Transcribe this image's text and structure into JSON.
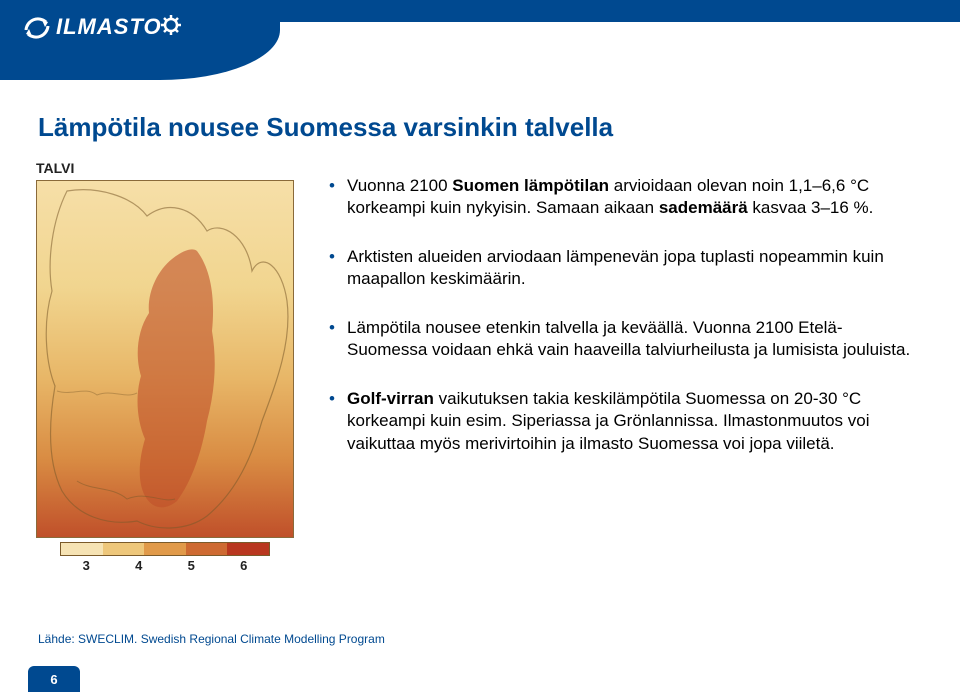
{
  "brand": {
    "logo_text": "ILMASTO",
    "banner_color": "#004990"
  },
  "title": "Lämpötila nousee Suomessa varsinkin talvella",
  "map": {
    "label": "TALVI",
    "legend_values": [
      "3",
      "4",
      "5",
      "6"
    ],
    "legend_colors": [
      "#f6e3b4",
      "#eec77b",
      "#e19a4a",
      "#ce6a32",
      "#b9371f"
    ],
    "gradient_top": "#f6dfa8",
    "gradient_bottom": "#c0502a",
    "border_color": "#8a6a3a"
  },
  "bullets": [
    {
      "parts": [
        {
          "text": "Vuonna 2100 ",
          "bold": false
        },
        {
          "text": "Suomen lämpötilan ",
          "bold": true
        },
        {
          "text": "arvioidaan olevan noin 1,1–6,6 °C korkeampi kuin nykyisin. Samaan aikaan ",
          "bold": false
        },
        {
          "text": "sademäärä ",
          "bold": true
        },
        {
          "text": "kasvaa 3–16 %.",
          "bold": false
        }
      ]
    },
    {
      "parts": [
        {
          "text": "Arktisten alueiden arviodaan lämpenevän jopa tuplasti nopeammin kuin maapallon keskimäärin.",
          "bold": false
        }
      ]
    },
    {
      "parts": [
        {
          "text": "Lämpötila nousee etenkin talvella ja keväällä. Vuonna 2100 Etelä-Suomessa voidaan ehkä vain haaveilla talviurheilusta ja lumisista jouluista.",
          "bold": false
        }
      ]
    },
    {
      "parts": [
        {
          "text": "Golf-virran ",
          "bold": true
        },
        {
          "text": "vaikutuksen takia keskilämpötila Suomessa on 20-30 °C korkeampi kuin esim. Siperiassa ja Grönlannissa. Ilmastonmuutos voi vaikuttaa myös merivirtoihin ja ilmasto Suomessa voi jopa viiletä.",
          "bold": false
        }
      ]
    }
  ],
  "source": "Lähde: SWECLIM. Swedish Regional Climate Modelling Program",
  "page_number": "6",
  "typography": {
    "title_fontsize": 26,
    "title_color": "#004990",
    "body_fontsize": 17,
    "body_color": "#000000",
    "source_fontsize": 12,
    "source_color": "#004990"
  }
}
